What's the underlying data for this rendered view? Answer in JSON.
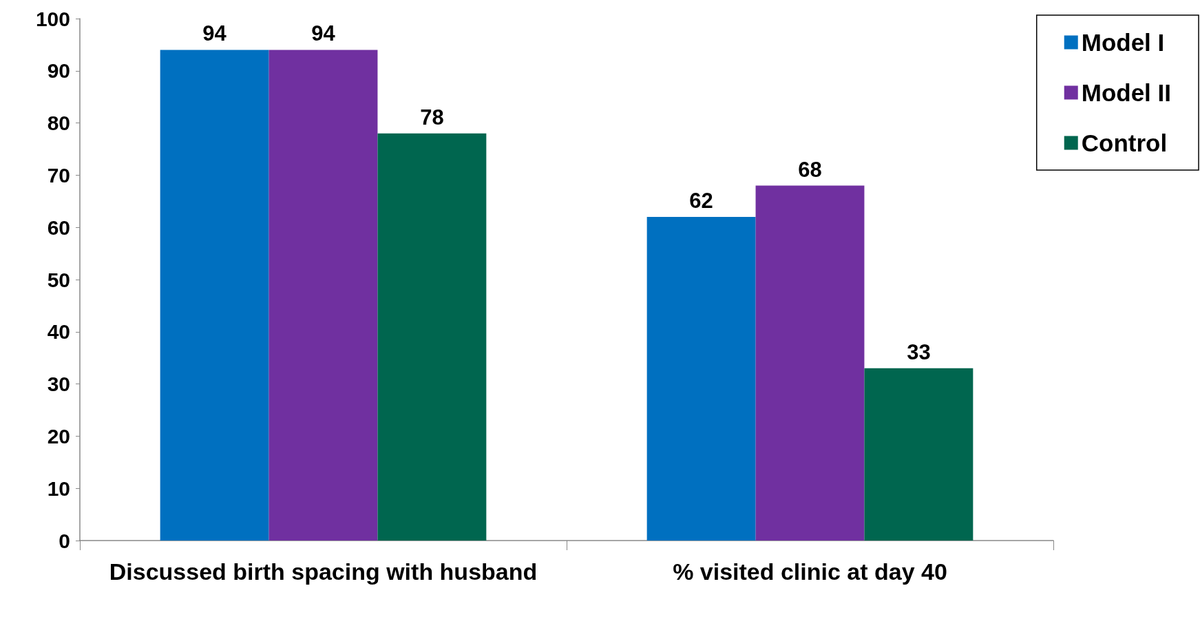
{
  "chart_data": {
    "type": "bar",
    "categories": [
      "Discussed birth spacing with husband",
      "% visited clinic at day 40"
    ],
    "series": [
      {
        "name": "Model I",
        "color": "#0070c0",
        "values": [
          94,
          62
        ]
      },
      {
        "name": "Model II",
        "color": "#7030a0",
        "values": [
          94,
          68
        ]
      },
      {
        "name": "Control",
        "color": "#00664f",
        "values": [
          78,
          33
        ]
      }
    ],
    "ylim": [
      0,
      100
    ],
    "yticks": [
      0,
      10,
      20,
      30,
      40,
      50,
      60,
      70,
      80,
      90,
      100
    ],
    "grid": false,
    "legend": "top right",
    "data_labels": true
  }
}
